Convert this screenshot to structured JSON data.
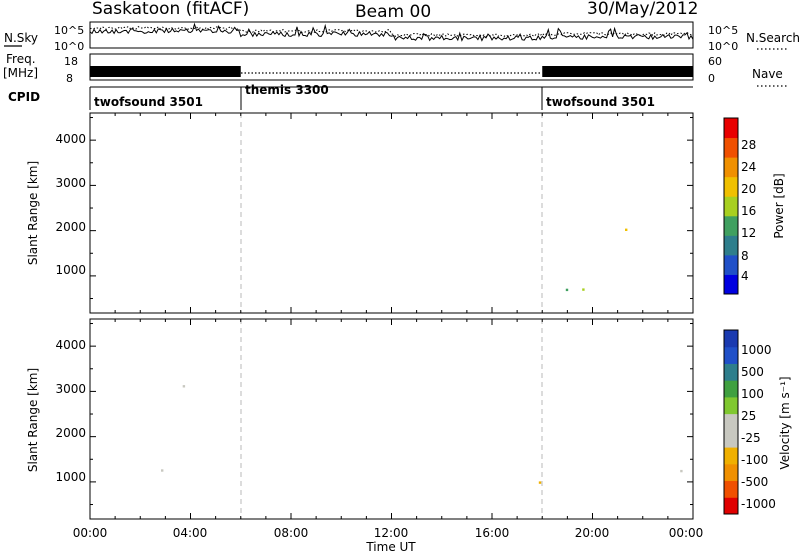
{
  "header": {
    "site_title": "Saskatoon (fitACF)",
    "beam_title": "Beam 00",
    "date_title": "30/May/2012"
  },
  "nsky_panel": {
    "left_label": "N.Sky",
    "left_ticks": [
      "10^5",
      "10^0"
    ],
    "right_ticks": [
      "10^5",
      "10^0"
    ],
    "right_label": "N.Search"
  },
  "freq_panel": {
    "left_label_top": "Freq.",
    "left_label_bottom": "[MHz]",
    "left_ticks": [
      "18",
      "8"
    ],
    "right_ticks": [
      "60",
      "0"
    ],
    "right_label": "Nave"
  },
  "cpid": {
    "label": "CPID",
    "modes": [
      {
        "name": "twofsound 3501",
        "start_hour": 0,
        "end_hour": 6
      },
      {
        "name": "themis 3300",
        "start_hour": 6,
        "end_hour": 18
      },
      {
        "name": "twofsound 3501",
        "start_hour": 18,
        "end_hour": 24
      }
    ]
  },
  "x_axis": {
    "label": "Time UT",
    "range_hours": [
      0,
      24
    ],
    "tick_labels": [
      "00:00",
      "04:00",
      "08:00",
      "12:00",
      "16:00",
      "20:00",
      "00:00"
    ]
  },
  "power_panel": {
    "ylabel": "Slant Range [km]",
    "yticks": [
      "1000",
      "2000",
      "3000",
      "4000"
    ],
    "colorbar_label": "Power [dB]",
    "colorbar_ticks": [
      "4",
      "8",
      "12",
      "16",
      "20",
      "24",
      "28"
    ]
  },
  "velocity_panel": {
    "ylabel": "Slant Range [km]",
    "yticks": [
      "1000",
      "2000",
      "3000",
      "4000"
    ],
    "colorbar_label": "Velocity [m s⁻¹]",
    "colorbar_ticks": [
      "1000",
      "500",
      "100",
      "25",
      "-25",
      "-100",
      "-500",
      "-1000"
    ]
  },
  "chart_data": {
    "type": "heatmap",
    "x_range_hours": [
      0,
      24
    ],
    "y_range_km": [
      180,
      4600
    ],
    "mode_boundaries_hours": [
      6,
      18
    ],
    "power_colorbar": {
      "range_db": [
        0,
        32
      ],
      "colors": [
        "#0000e0",
        "#2050c8",
        "#2e7e8c",
        "#40a060",
        "#a8d020",
        "#f0c000",
        "#f09000",
        "#f05000",
        "#e80000"
      ]
    },
    "velocity_colorbar": {
      "range": [
        -1000,
        1000
      ],
      "colors": [
        "#e00000",
        "#f05000",
        "#f09000",
        "#f0b000",
        "#c8c8c0",
        "#c8c8c0",
        "#80c830",
        "#40a040",
        "#2e7e8c",
        "#2050c8",
        "#1a3ab0"
      ]
    }
  }
}
